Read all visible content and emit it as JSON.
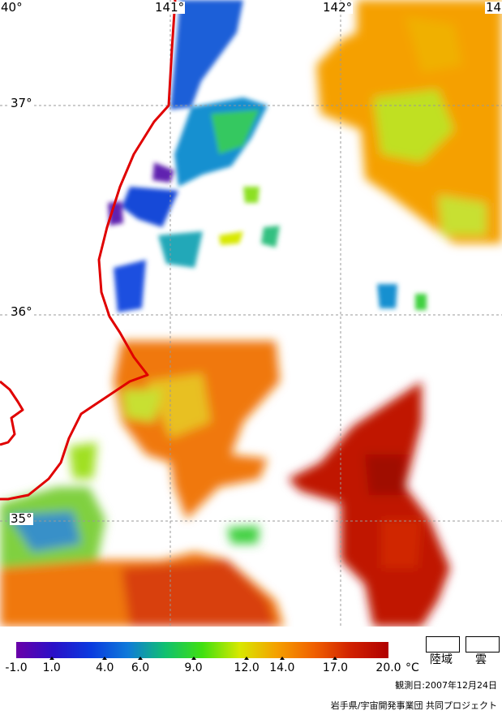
{
  "map": {
    "lon_labels": [
      {
        "id": "lon-140",
        "text": "40°"
      },
      {
        "id": "lon-141",
        "text": "141°"
      },
      {
        "id": "lon-142",
        "text": "142°"
      },
      {
        "id": "lon-143",
        "text": "14"
      }
    ],
    "lat_labels": [
      {
        "id": "lat-37",
        "text": "37°"
      },
      {
        "id": "lat-36",
        "text": "36°"
      },
      {
        "id": "lat-35",
        "text": "35°"
      }
    ],
    "colors": {
      "coastline": "#e00000",
      "grid": "#999999",
      "land_cloud": "#ffffff"
    }
  },
  "legend": {
    "ticks": [
      "-1.0",
      "1.0",
      "4.0",
      "6.0",
      "9.0",
      "12.0",
      "14.0",
      "17.0",
      "20.0"
    ],
    "tick_values": [
      -1,
      1,
      4,
      6,
      9,
      12,
      14,
      17,
      20
    ],
    "unit": "°C",
    "land_label": "陸域",
    "cloud_label": "雲",
    "color_stops": [
      "#6a00a8",
      "#2a10c8",
      "#0a3adf",
      "#0f7ad9",
      "#10c070",
      "#40e010",
      "#d8e800",
      "#f5a000",
      "#f06000",
      "#d02000",
      "#b00000"
    ]
  },
  "observation_date": "観測日:2007年12月24日",
  "credit": "岩手県/宇宙開発事業団 共同プロジェクト"
}
